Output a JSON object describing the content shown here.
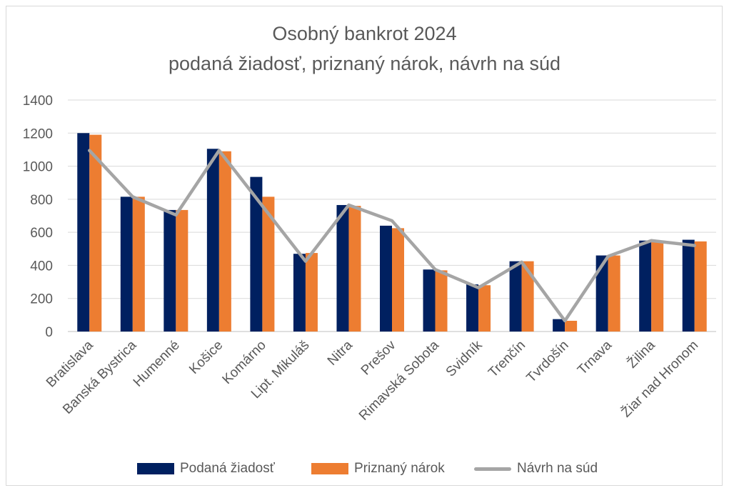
{
  "chart_data": {
    "type": "bar",
    "title": "Osobný bankrot 2024",
    "subtitle": "podaná  žiadosť, priznaný nárok,  návrh na súd",
    "categories": [
      "Bratislava",
      "Banská Bystrica",
      "Humenné",
      "Košice",
      "Komárno",
      "Lipt. Mikuláš",
      "Nitra",
      "Prešov",
      "Rimavská Sobota",
      "Svidník",
      "Trenčín",
      "Tvrdošín",
      "Trnava",
      "Žilina",
      "Žiar nad Hronom"
    ],
    "series": [
      {
        "name": "Podaná žiadosť",
        "kind": "bar",
        "color": "#002060",
        "values": [
          1200,
          815,
          735,
          1105,
          935,
          470,
          765,
          640,
          375,
          285,
          425,
          75,
          460,
          550,
          555
        ]
      },
      {
        "name": "Priznaný nárok",
        "kind": "bar",
        "color": "#ed7d31",
        "values": [
          1190,
          815,
          735,
          1090,
          815,
          475,
          760,
          625,
          370,
          280,
          425,
          65,
          460,
          540,
          545
        ]
      },
      {
        "name": "Návrh na súd",
        "kind": "line",
        "color": "#a5a5a5",
        "values": [
          1095,
          815,
          705,
          1095,
          760,
          425,
          765,
          670,
          375,
          265,
          420,
          65,
          455,
          550,
          520
        ]
      }
    ],
    "xlabel": "",
    "ylabel": "",
    "ylim": [
      0,
      1400
    ],
    "yticks": [
      0,
      200,
      400,
      600,
      800,
      1000,
      1200,
      1400
    ],
    "grid": true,
    "legend_position": "bottom"
  }
}
